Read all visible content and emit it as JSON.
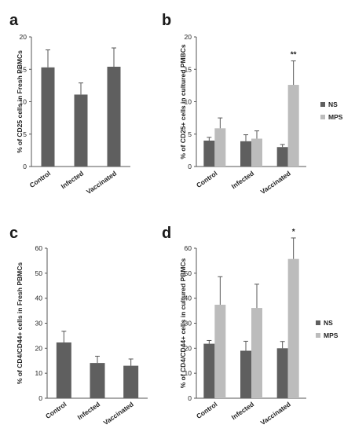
{
  "colors": {
    "dark": "#5f5f5f",
    "light": "#bcbcbc",
    "axis": "#555555",
    "err": "#555555"
  },
  "chart_data": [
    {
      "panel": "a",
      "type": "bar",
      "categories": [
        "Control",
        "Infected",
        "Vaccinated"
      ],
      "ylabel": "% of CD25 cells in Fresh PBMCs",
      "ylim": [
        0,
        20
      ],
      "yticks": [
        0,
        5,
        10,
        15,
        20
      ],
      "series": [
        {
          "values": [
            15.3,
            11.1,
            15.4
          ],
          "errors": [
            2.7,
            1.8,
            2.9
          ],
          "color_key": "dark"
        }
      ]
    },
    {
      "panel": "b",
      "type": "bar",
      "categories": [
        "Control",
        "Infected",
        "Vaccinated"
      ],
      "ylabel": "% of CD25+ cells in cultured PMBCs",
      "ylim": [
        0,
        20
      ],
      "yticks": [
        0,
        5,
        10,
        15,
        20
      ],
      "series": [
        {
          "name": "NS",
          "values": [
            4.0,
            3.9,
            3.0
          ],
          "errors": [
            0.5,
            1.0,
            0.4
          ],
          "color_key": "dark"
        },
        {
          "name": "MPS",
          "values": [
            5.9,
            4.3,
            12.6
          ],
          "errors": [
            1.6,
            1.2,
            3.7
          ],
          "color_key": "light"
        }
      ],
      "annotations": [
        {
          "category": "Vaccinated",
          "series": "MPS",
          "text": "**"
        }
      ],
      "legend": "right"
    },
    {
      "panel": "c",
      "type": "bar",
      "categories": [
        "Control",
        "Infected",
        "Vaccinated"
      ],
      "ylabel": "% of CD4/CD44+ cells in Fresh PBMCs",
      "ylim": [
        0,
        60
      ],
      "yticks": [
        0,
        10,
        20,
        30,
        40,
        50,
        60
      ],
      "series": [
        {
          "values": [
            22.3,
            14.1,
            13.0
          ],
          "errors": [
            4.5,
            2.7,
            2.7
          ],
          "color_key": "dark"
        }
      ]
    },
    {
      "panel": "d",
      "type": "bar",
      "categories": [
        "Control",
        "Infected",
        "Vaccinated"
      ],
      "ylabel": "% of CD4/CD44+ cells in cultured PBMCs",
      "ylim": [
        0,
        60
      ],
      "yticks": [
        0,
        10,
        20,
        30,
        40,
        50,
        60
      ],
      "series": [
        {
          "name": "NS",
          "values": [
            21.8,
            19.0,
            20.0
          ],
          "errors": [
            1.3,
            3.8,
            2.7
          ],
          "color_key": "dark"
        },
        {
          "name": "MPS",
          "values": [
            37.4,
            36.1,
            55.7
          ],
          "errors": [
            11.2,
            9.5,
            8.4
          ],
          "color_key": "light"
        }
      ],
      "annotations": [
        {
          "category": "Vaccinated",
          "series": "MPS",
          "text": "*"
        }
      ],
      "legend": "right"
    }
  ]
}
